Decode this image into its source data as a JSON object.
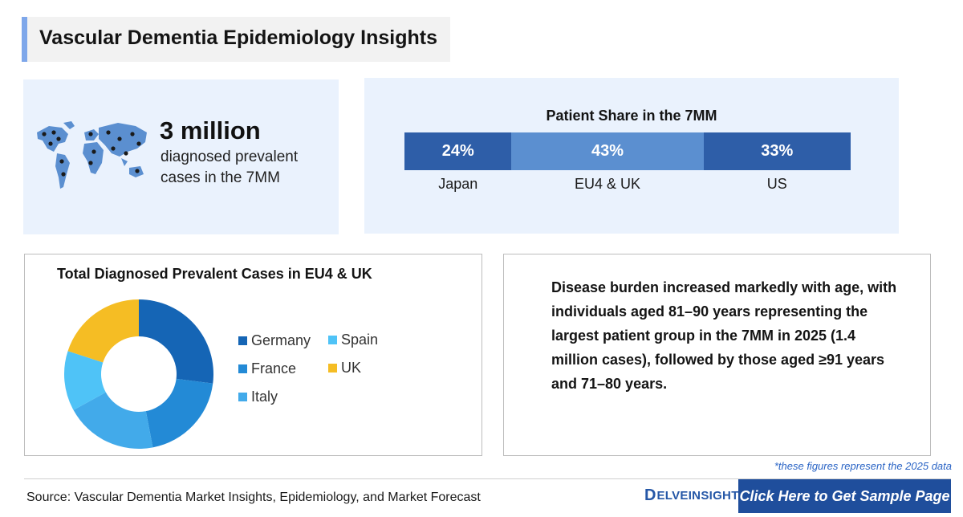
{
  "header": {
    "title": "Vascular Dementia Epidemiology Insights"
  },
  "stat": {
    "value": "3 million",
    "description": "diagnosed prevalent cases in the 7MM",
    "icon": "world-map-icon"
  },
  "patient_share": {
    "title": "Patient Share in the 7MM",
    "segments": [
      {
        "label": "Japan",
        "value_text": "24%",
        "value": 24,
        "color": "#2e5ea8"
      },
      {
        "label": "EU4 & UK",
        "value_text": "43%",
        "value": 43,
        "color": "#5b8fd0"
      },
      {
        "label": "US",
        "value_text": "33%",
        "value": 33,
        "color": "#2e5ea8"
      }
    ]
  },
  "donut": {
    "title": "Total Diagnosed Prevalent Cases in EU4 & UK",
    "legend": [
      {
        "label": "Germany",
        "color": "#1565b5"
      },
      {
        "label": "Spain",
        "color": "#4fc3f7"
      },
      {
        "label": "France",
        "color": "#238ad6"
      },
      {
        "label": "UK",
        "color": "#f5bd24"
      },
      {
        "label": "Italy",
        "color": "#42aaea"
      }
    ]
  },
  "chart_data": {
    "type": "pie",
    "title": "Total Diagnosed Prevalent Cases in EU4 & UK",
    "categories": [
      "Germany",
      "France",
      "Italy",
      "Spain",
      "UK"
    ],
    "values": [
      27,
      20,
      20,
      13,
      20
    ],
    "colors": [
      "#1565b5",
      "#238ad6",
      "#42aaea",
      "#4fc3f7",
      "#f5bd24"
    ],
    "legend_position": "right"
  },
  "insight": {
    "text": "Disease burden increased markedly with age, with individuals aged 81–90 years representing the largest patient group in the 7MM in 2025 (1.4 million cases), followed by those aged ≥91 years and 71–80 years."
  },
  "footnote": "*these figures represent the 2025 data",
  "source": "Source: Vascular Dementia Market Insights, Epidemiology, and Market Forecast",
  "logo": {
    "mark": "D",
    "text": "ELVEINSIGHT"
  },
  "cta": {
    "label": "Click Here to Get Sample Page"
  }
}
